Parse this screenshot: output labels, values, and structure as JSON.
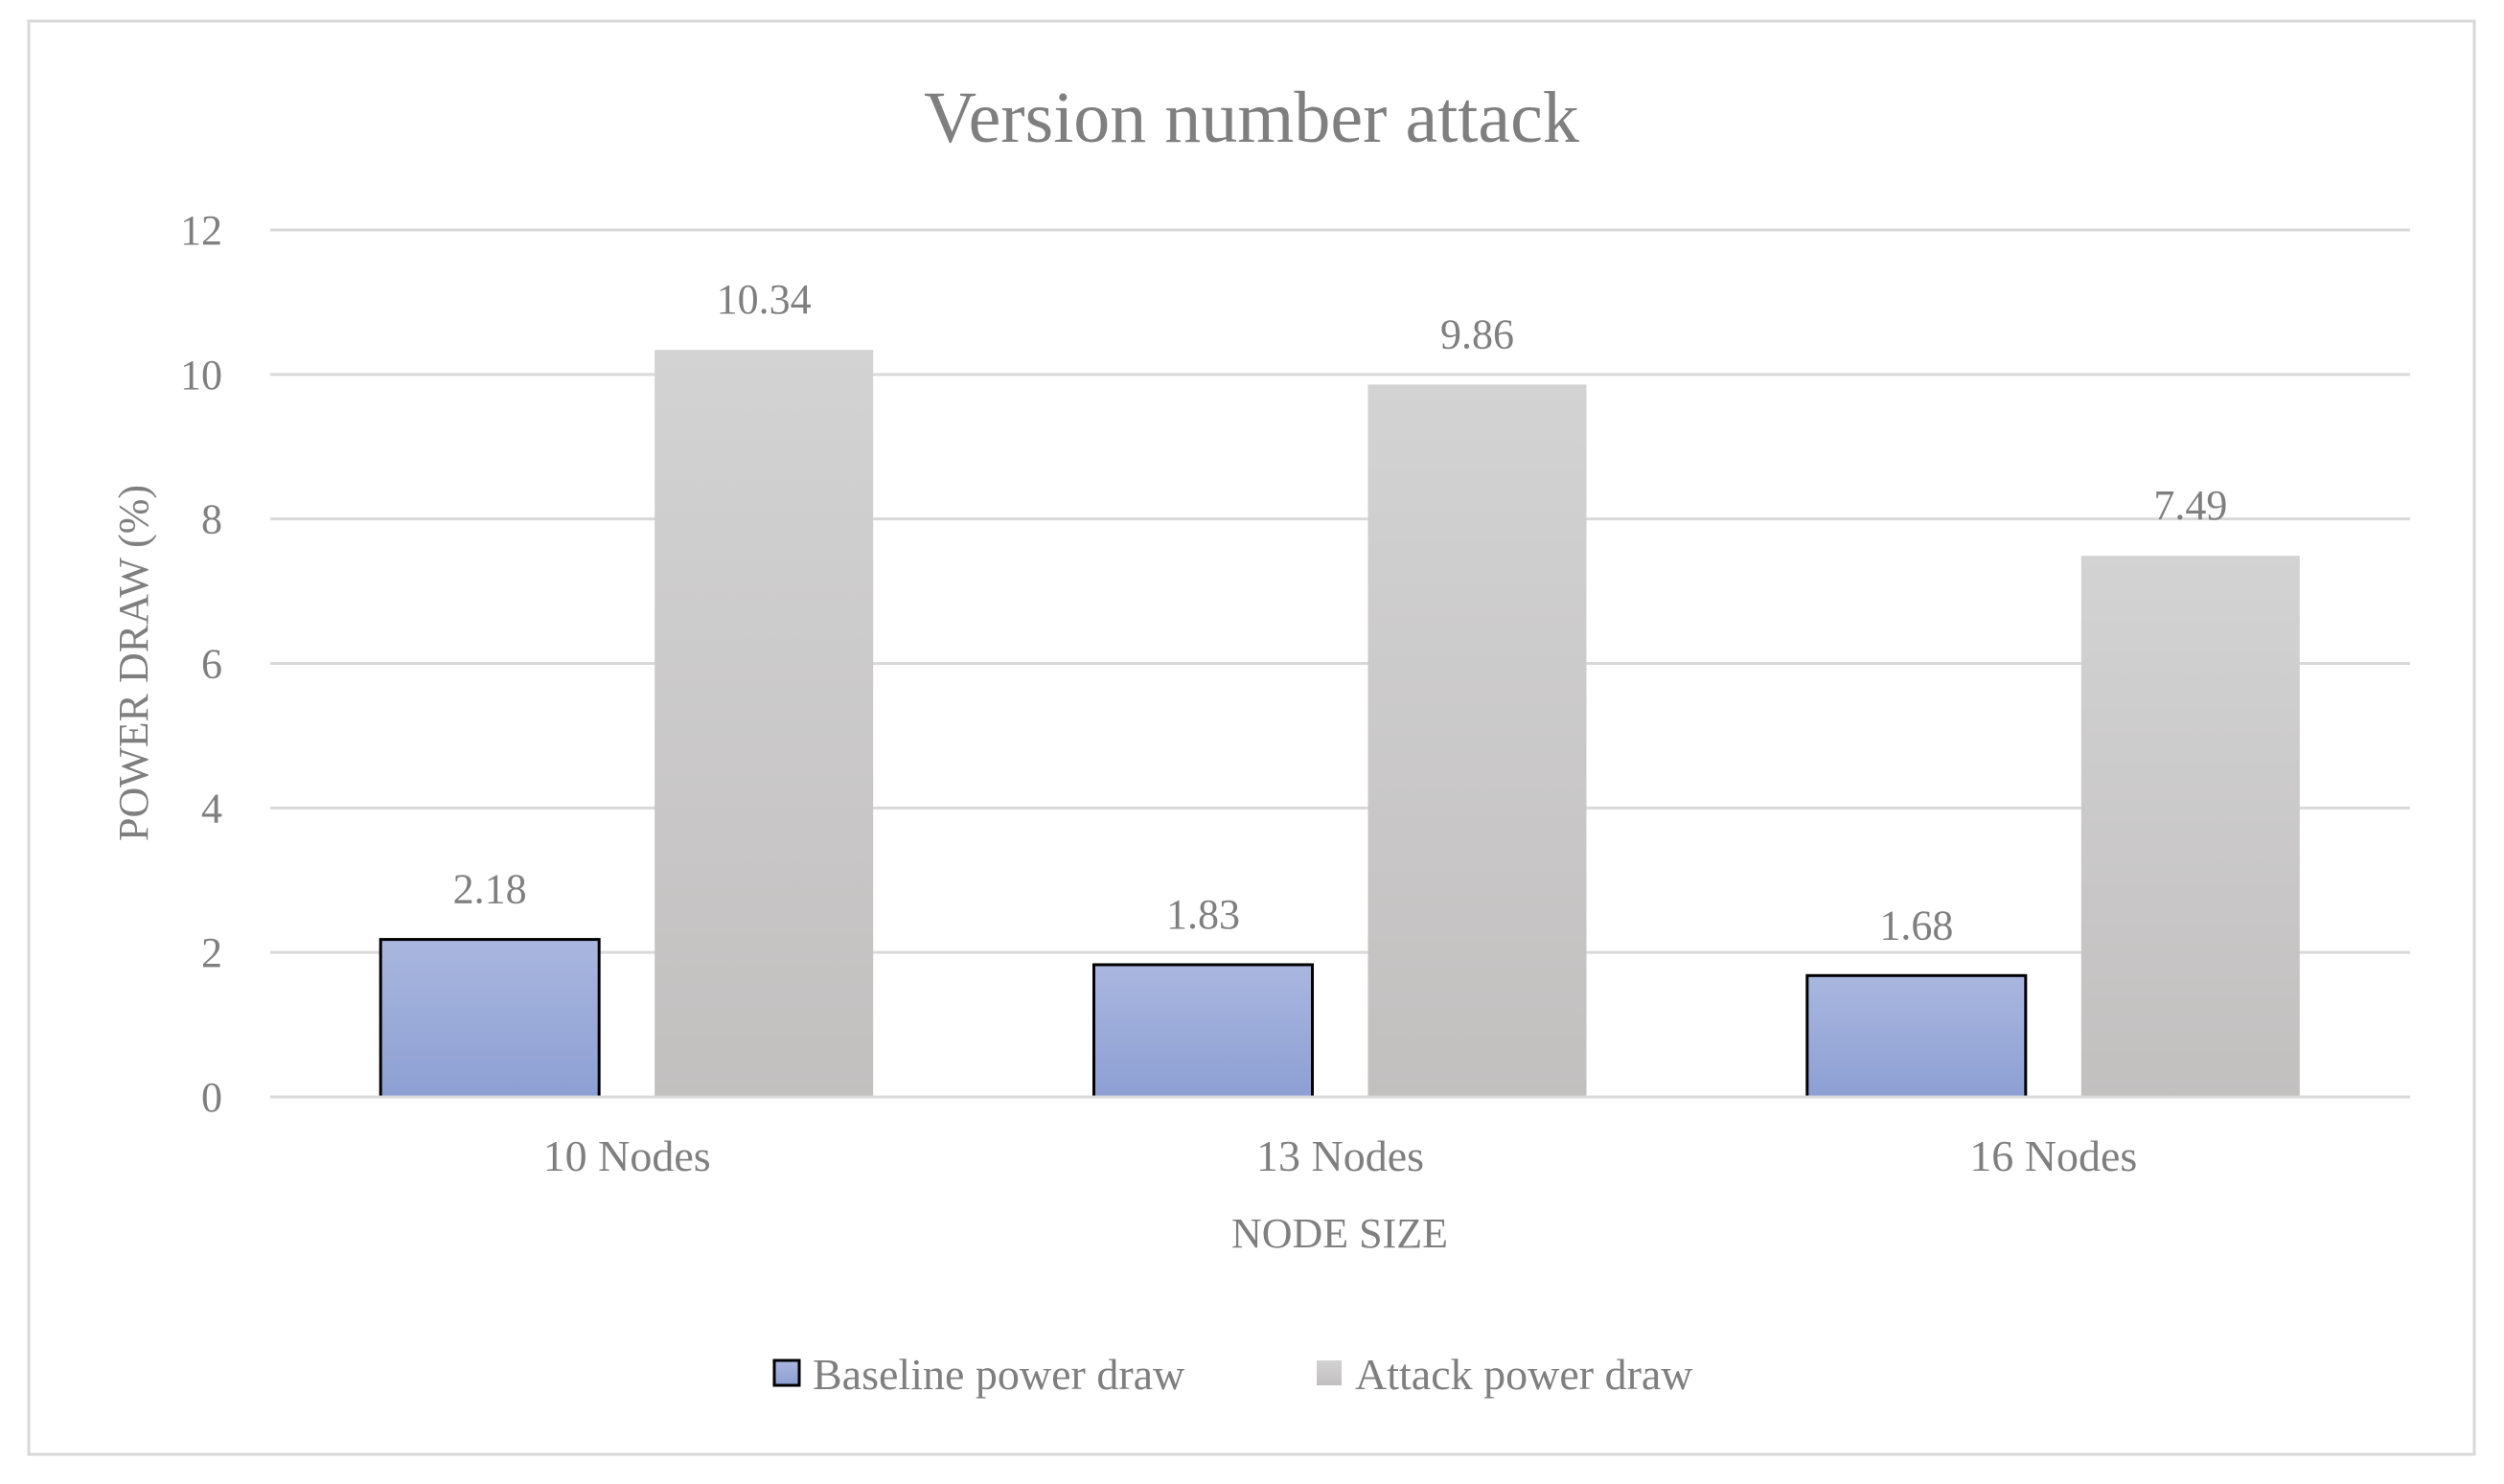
{
  "chart_data": {
    "type": "bar",
    "title": "Version number attack",
    "xlabel": "NODE SIZE",
    "ylabel": "POWER DRAW (%)",
    "categories": [
      "10 Nodes",
      "13 Nodes",
      "16 Nodes"
    ],
    "ylim": [
      0,
      12
    ],
    "yticks": [
      0,
      2,
      4,
      6,
      8,
      10,
      12
    ],
    "grid": true,
    "legend_position": "bottom",
    "series": [
      {
        "name": "Baseline power draw",
        "values": [
          2.18,
          1.83,
          1.68
        ],
        "labels": [
          "2.18",
          "1.83",
          "1.68"
        ],
        "color_top": "#a9b7df",
        "color_bottom": "#8d9fd3",
        "outline": "#000000"
      },
      {
        "name": "Attack power draw",
        "values": [
          10.34,
          9.86,
          7.49
        ],
        "labels": [
          "10.34",
          "9.86",
          "7.49"
        ],
        "color_top": "#d3d3d3",
        "color_bottom": "#c2bfbf",
        "outline": "none"
      }
    ]
  }
}
